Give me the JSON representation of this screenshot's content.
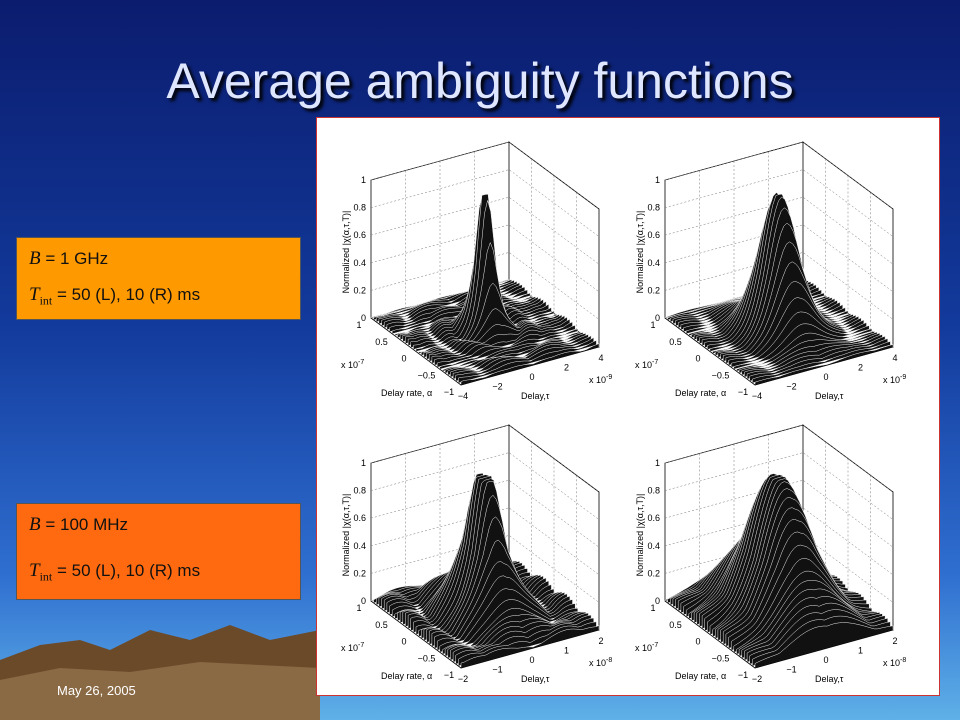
{
  "title": "Average ambiguity functions",
  "boxes": [
    {
      "lines": [
        {
          "var": "B",
          "sub": "",
          "text": " = 1 GHz"
        },
        {
          "var": "T",
          "sub": "int",
          "text": " = 50 (L), 10 (R) ms"
        }
      ]
    },
    {
      "lines": [
        {
          "var": "B",
          "sub": "",
          "text": " = 100 MHz"
        },
        {
          "var": "T",
          "sub": "int",
          "text": " = 50 (L), 10 (R) ms"
        }
      ]
    }
  ],
  "plots": [
    {
      "z_label": "Normalized |χ(α,τ,T)|",
      "rate_label": "Delay rate, α",
      "delay_label": "Delay,τ",
      "z_ticks": [
        "0",
        "0.2",
        "0.4",
        "0.6",
        "0.8",
        "1"
      ],
      "rate_ticks": [
        "1",
        "0.5",
        "0",
        "−0.5",
        "−1"
      ],
      "delay_ticks": [
        "−4",
        "−2",
        "0",
        "2",
        "4"
      ],
      "rate_exp": [
        "x 10",
        "-7"
      ],
      "delay_exp": [
        "x 10",
        "-9"
      ]
    },
    {
      "z_label": "Normalized |χ(α,τ,T)|",
      "rate_label": "Delay rate, α",
      "delay_label": "Delay,τ",
      "z_ticks": [
        "0",
        "0.2",
        "0.4",
        "0.6",
        "0.8",
        "1"
      ],
      "rate_ticks": [
        "1",
        "0.5",
        "0",
        "−0.5",
        "−1"
      ],
      "delay_ticks": [
        "−4",
        "−2",
        "0",
        "2",
        "4"
      ],
      "rate_exp": [
        "x 10",
        "-7"
      ],
      "delay_exp": [
        "x 10",
        "-9"
      ]
    },
    {
      "z_label": "Normalized |χ(α,τ,T)|",
      "rate_label": "Delay rate, α",
      "delay_label": "Delay,τ",
      "z_ticks": [
        "0",
        "0.2",
        "0.4",
        "0.6",
        "0.8",
        "1"
      ],
      "rate_ticks": [
        "1",
        "0.5",
        "0",
        "−0.5",
        "−1"
      ],
      "delay_ticks": [
        "−2",
        "−1",
        "0",
        "1",
        "2"
      ],
      "rate_exp": [
        "x 10",
        "-7"
      ],
      "delay_exp": [
        "x 10",
        "-8"
      ]
    },
    {
      "z_label": "Normalized |χ(α,τ,T)|",
      "rate_label": "Delay rate, α",
      "delay_label": "Delay,τ",
      "z_ticks": [
        "0",
        "0.2",
        "0.4",
        "0.6",
        "0.8",
        "1"
      ],
      "rate_ticks": [
        "1",
        "0.5",
        "0",
        "−0.5",
        "−1"
      ],
      "delay_ticks": [
        "−2",
        "−1",
        "0",
        "1",
        "2"
      ],
      "rate_exp": [
        "x 10",
        "-7"
      ],
      "delay_exp": [
        "x 10",
        "-8"
      ]
    }
  ],
  "footer": {
    "date": "May 26, 2005"
  }
}
